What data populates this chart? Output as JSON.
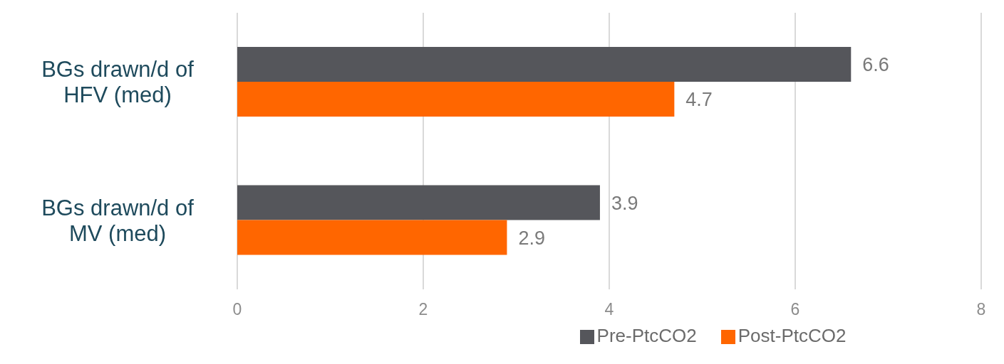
{
  "chart_data": {
    "type": "bar",
    "orientation": "horizontal",
    "categories": [
      "BGs drawn/d of HFV (med)",
      "BGs drawn/d of MV (med)"
    ],
    "series": [
      {
        "name": "Pre-PtcCO2",
        "color": "#55565b",
        "values": [
          6.6,
          3.9
        ]
      },
      {
        "name": "Post-PtcCO2",
        "color": "#ff6600",
        "values": [
          4.7,
          2.9
        ]
      }
    ],
    "xlim": [
      0,
      8
    ],
    "xticks": [
      0,
      2,
      4,
      6,
      8
    ],
    "grid": "x",
    "legend": "bottom",
    "data_labels": true
  }
}
